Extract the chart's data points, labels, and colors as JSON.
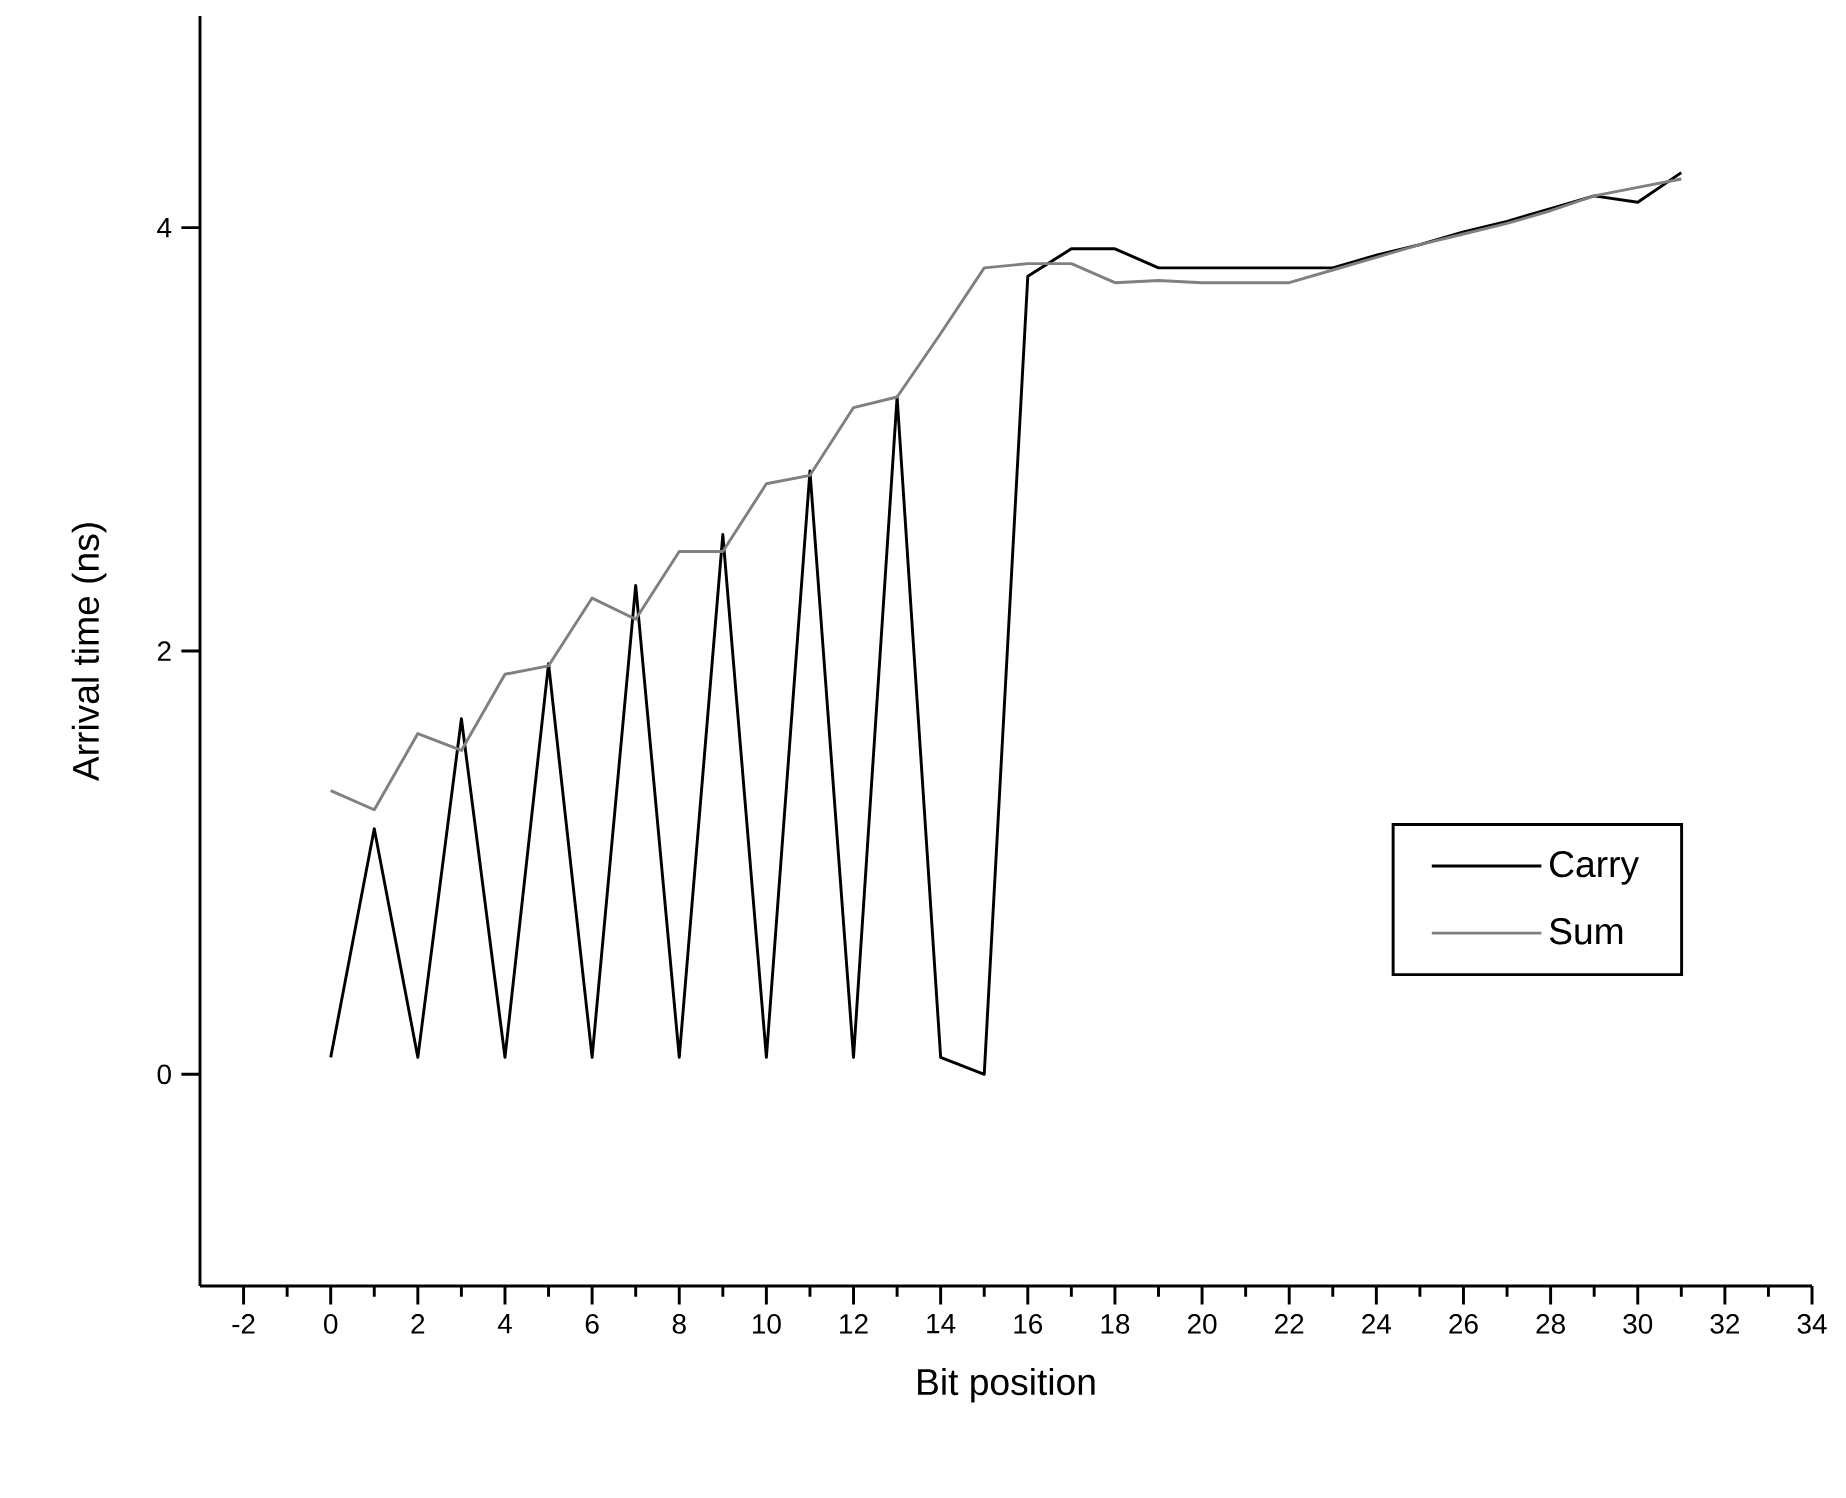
{
  "chart_data": {
    "type": "line",
    "xlabel": "Bit position",
    "ylabel": "Arrival time (ns)",
    "x": [
      0,
      1,
      2,
      3,
      4,
      5,
      6,
      7,
      8,
      9,
      10,
      11,
      12,
      13,
      14,
      15,
      16,
      17,
      18,
      19,
      20,
      21,
      22,
      23,
      24,
      25,
      26,
      27,
      28,
      29,
      30,
      31
    ],
    "series": [
      {
        "name": "Carry",
        "color": "#000000",
        "values": [
          0.08,
          1.16,
          0.08,
          1.68,
          0.08,
          1.94,
          0.08,
          2.31,
          0.08,
          2.55,
          0.08,
          2.85,
          0.08,
          3.2,
          0.08,
          0.0,
          3.77,
          3.9,
          3.9,
          3.81,
          3.81,
          3.81,
          3.81,
          3.81,
          3.87,
          3.92,
          3.98,
          4.03,
          4.09,
          4.15,
          4.12,
          4.26
        ]
      },
      {
        "name": "Sum",
        "color": "#808080",
        "values": [
          1.34,
          1.25,
          1.61,
          1.53,
          1.89,
          1.93,
          2.25,
          2.15,
          2.47,
          2.47,
          2.79,
          2.83,
          3.15,
          3.2,
          3.5,
          3.81,
          3.83,
          3.83,
          3.74,
          3.75,
          3.74,
          3.74,
          3.74,
          3.8,
          3.86,
          3.92,
          3.97,
          4.02,
          4.08,
          4.15,
          4.19,
          4.23
        ]
      }
    ],
    "xlim": [
      -3,
      34
    ],
    "ylim": [
      -1,
      5
    ],
    "xticks": [
      -2,
      0,
      2,
      4,
      6,
      8,
      10,
      12,
      14,
      16,
      18,
      20,
      22,
      24,
      26,
      28,
      30,
      32,
      34
    ],
    "yticks": [
      0,
      2,
      4
    ],
    "grid": false,
    "legend": "right",
    "marker": "none",
    "line_style": "solid"
  }
}
